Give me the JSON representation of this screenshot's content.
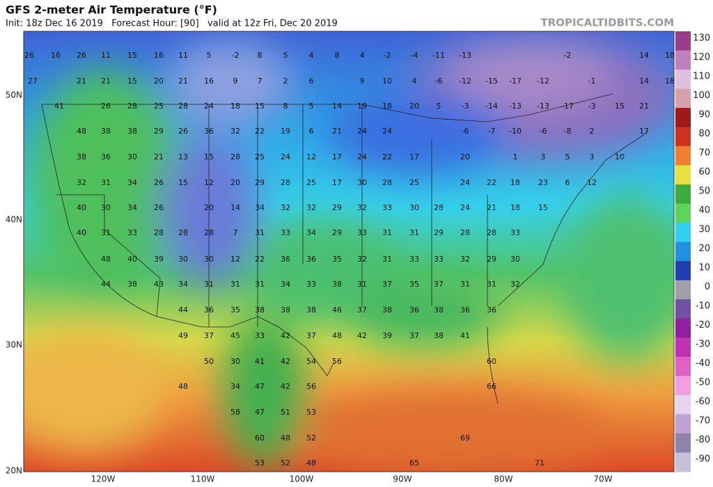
{
  "header": {
    "title": "GFS 2-meter Air Temperature (°F)",
    "subtitle": "Init: 18z Dec 16 2019   Forecast Hour: [90]   valid at 12z Fri, Dec 20 2019",
    "watermark": "TROPICALTIDBITS.COM"
  },
  "colorbar": {
    "ticks": [
      130,
      120,
      110,
      100,
      90,
      80,
      70,
      60,
      50,
      40,
      30,
      20,
      10,
      0,
      -10,
      -20,
      -30,
      -40,
      -50,
      -60,
      -70,
      -80,
      -90
    ]
  },
  "latitude_labels": [
    "50N",
    "40N",
    "30N",
    "20N"
  ],
  "longitude_labels": [
    "120W",
    "110W",
    "100W",
    "90W",
    "80W",
    "70W"
  ],
  "temperature_rows": [
    [
      26,
      16,
      26,
      11,
      15,
      16,
      11,
      5,
      -2,
      8,
      5,
      4,
      8,
      4,
      -2,
      -4,
      -11,
      -13,
      -2,
      14,
      18
    ],
    [
      27,
      21,
      21,
      15,
      20,
      21,
      16,
      9,
      7,
      2,
      6,
      9,
      10,
      4,
      -6,
      -12,
      -15,
      -17,
      -12,
      -1,
      14,
      18
    ],
    [
      41,
      26,
      28,
      25,
      28,
      24,
      18,
      15,
      8,
      5,
      14,
      19,
      18,
      20,
      5,
      -3,
      -14,
      -13,
      -13,
      -17,
      -3,
      15,
      21
    ],
    [
      48,
      38,
      38,
      29,
      26,
      36,
      32,
      22,
      19,
      6,
      21,
      24,
      24,
      -6,
      -7,
      -10,
      -6,
      -8,
      2,
      17
    ],
    [
      38,
      36,
      30,
      21,
      13,
      15,
      28,
      25,
      24,
      12,
      17,
      24,
      22,
      17,
      20,
      1,
      3,
      5,
      3,
      10
    ],
    [
      32,
      31,
      34,
      26,
      15,
      12,
      20,
      29,
      28,
      25,
      17,
      30,
      28,
      25,
      24,
      22,
      18,
      23,
      6,
      12
    ],
    [
      40,
      30,
      34,
      26,
      20,
      14,
      34,
      32,
      32,
      29,
      32,
      33,
      30,
      28,
      24,
      21,
      18,
      15
    ],
    [
      40,
      31,
      33,
      28,
      28,
      28,
      7,
      31,
      33,
      34,
      29,
      33,
      31,
      31,
      29,
      28,
      28,
      33
    ],
    [
      48,
      40,
      39,
      30,
      30,
      12,
      22,
      36,
      36,
      35,
      32,
      31,
      33,
      33,
      32,
      29,
      30
    ],
    [
      44,
      38,
      43,
      34,
      31,
      31,
      31,
      34,
      33,
      38,
      31,
      37,
      35,
      37,
      31,
      31,
      32
    ],
    [
      44,
      36,
      35,
      38,
      38,
      38,
      46,
      37,
      38,
      36,
      38,
      36,
      36
    ],
    [
      49,
      37,
      45,
      33,
      42,
      37,
      48,
      42,
      39,
      37,
      38,
      41
    ],
    [
      50,
      30,
      41,
      42,
      54,
      56,
      60
    ],
    [
      48,
      34,
      47,
      42,
      56,
      66
    ],
    [
      58,
      47,
      51,
      53
    ],
    [
      60,
      48,
      52,
      69
    ],
    [
      53,
      52,
      48,
      65,
      71
    ]
  ]
}
